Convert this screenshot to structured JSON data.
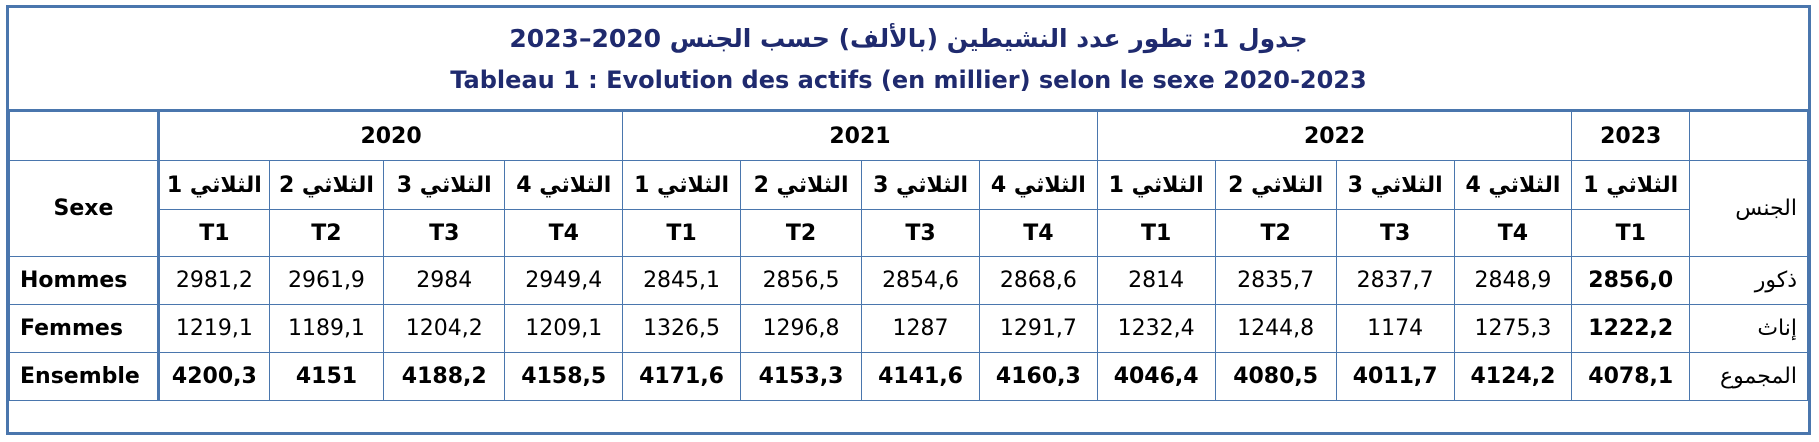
{
  "title": {
    "arabic": "جدول 1: تطور عدد النشيطين (بالألف) حسب الجنس 2020–2023",
    "french": "Tableau 1 : Evolution des actifs (en millier) selon le sexe 2020-2023"
  },
  "header": {
    "sexe_fr": "Sexe",
    "sexe_ar": "الجنس",
    "years": [
      "2020",
      "2021",
      "2022",
      "2023"
    ],
    "quarters_ar": [
      "الثلاثي 1",
      "الثلاثي 2",
      "الثلاثي 3",
      "الثلاثي 4",
      "الثلاثي 1",
      "الثلاثي 2",
      "الثلاثي 3",
      "الثلاثي 4",
      "الثلاثي 1",
      "الثلاثي 2",
      "الثلاثي 3",
      "الثلاثي 4",
      "الثلاثي 1"
    ],
    "quarters_fr": [
      "T1",
      "T2",
      "T3",
      "T4",
      "T1",
      "T2",
      "T3",
      "T4",
      "T1",
      "T2",
      "T3",
      "T4",
      "T1"
    ]
  },
  "rows": [
    {
      "fr": "Hommes",
      "ar": "ذكور",
      "values": [
        "2981,2",
        "2961,9",
        "2984",
        "2949,4",
        "2845,1",
        "2856,5",
        "2854,6",
        "2868,6",
        "2814",
        "2835,7",
        "2837,7",
        "2848,9",
        "2856,0"
      ]
    },
    {
      "fr": "Femmes",
      "ar": "إناث",
      "values": [
        "1219,1",
        "1189,1",
        "1204,2",
        "1209,1",
        "1326,5",
        "1296,8",
        "1287",
        "1291,7",
        "1232,4",
        "1244,8",
        "1174",
        "1275,3",
        "1222,2"
      ]
    },
    {
      "fr": "Ensemble",
      "ar": "المجموع",
      "values": [
        "4200,3",
        "4151",
        "4188,2",
        "4158,5",
        "4171,6",
        "4153,3",
        "4141,6",
        "4160,3",
        "4046,4",
        "4080,5",
        "4011,7",
        "4124,2",
        "4078,1"
      ]
    }
  ]
}
